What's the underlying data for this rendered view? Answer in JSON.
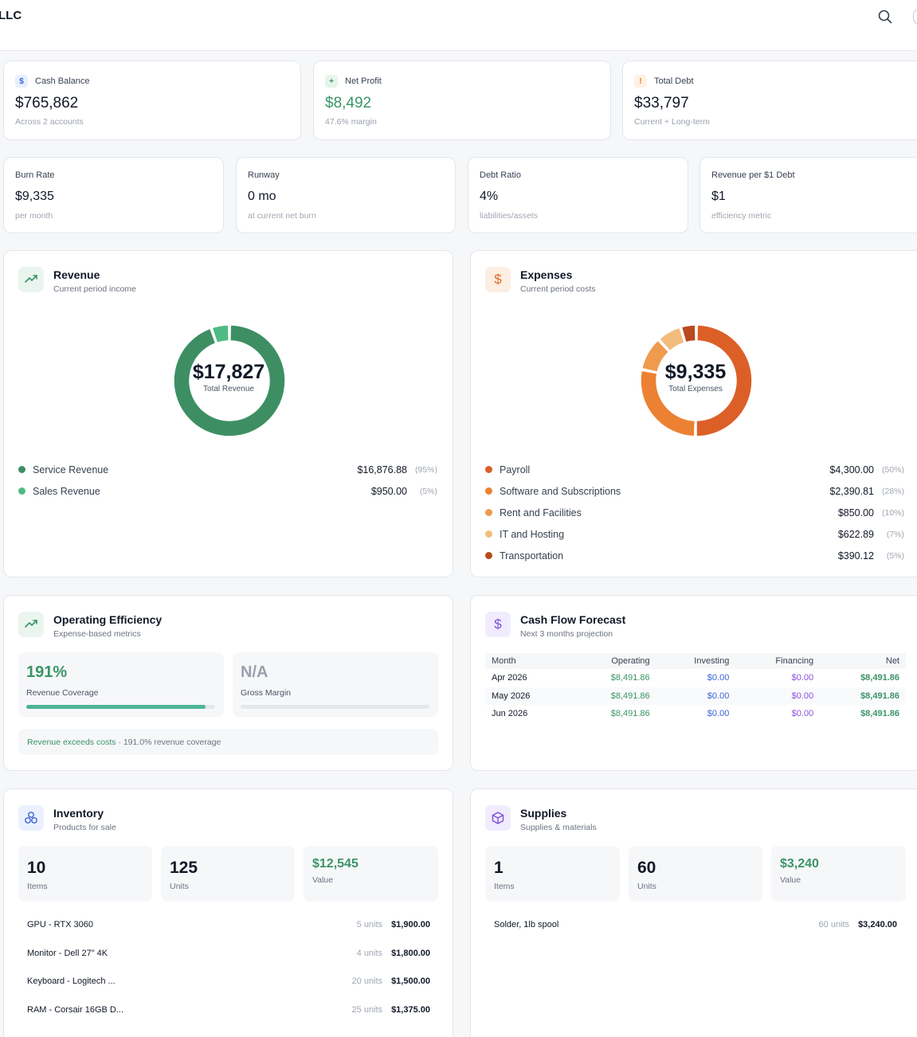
{
  "header": {
    "brand": "LLC"
  },
  "stats": [
    {
      "label": "Cash Balance",
      "badge": "$",
      "value": "$765,862",
      "sub": "Across 2 accounts"
    },
    {
      "label": "Net Profit",
      "badge": "+",
      "value": "$8,492",
      "sub": "47.6% margin"
    },
    {
      "label": "Total Debt",
      "badge": "!",
      "value": "$33,797",
      "sub": "Current + Long-term"
    }
  ],
  "metrics": [
    {
      "label": "Burn Rate",
      "value": "$9,335",
      "sub": "per month"
    },
    {
      "label": "Runway",
      "value": "0 mo",
      "sub": "at current net burn"
    },
    {
      "label": "Debt Ratio",
      "value": "4%",
      "sub": "liabilities/assets"
    },
    {
      "label": "Revenue per $1 Debt",
      "value": "$1",
      "sub": "efficiency metric"
    }
  ],
  "revenue": {
    "title": "Revenue",
    "subtitle": "Current period income",
    "total": "$17,827",
    "total_label": "Total Revenue",
    "items": [
      {
        "name": "Service Revenue",
        "amount": "$16,876.88",
        "pct": "(95%)",
        "value": 16876.88,
        "color": "#3d8f63"
      },
      {
        "name": "Sales Revenue",
        "amount": "$950.00",
        "pct": "(5%)",
        "value": 950.0,
        "color": "#4dbb83"
      }
    ]
  },
  "expenses": {
    "title": "Expenses",
    "subtitle": "Current period costs",
    "total": "$9,335",
    "total_label": "Total Expenses",
    "items": [
      {
        "name": "Payroll",
        "amount": "$4,300.00",
        "pct": "(50%)",
        "value": 4300.0,
        "color": "#dc5f28"
      },
      {
        "name": "Software and Subscriptions",
        "amount": "$2,390.81",
        "pct": "(28%)",
        "value": 2390.81,
        "color": "#ec8133"
      },
      {
        "name": "Rent and Facilities",
        "amount": "$850.00",
        "pct": "(10%)",
        "value": 850.0,
        "color": "#ee9b4d"
      },
      {
        "name": "IT and Hosting",
        "amount": "$622.89",
        "pct": "(7%)",
        "value": 622.89,
        "color": "#f2bd7c"
      },
      {
        "name": "Transportation",
        "amount": "$390.12",
        "pct": "(5%)",
        "value": 390.12,
        "color": "#b84a1d"
      }
    ]
  },
  "efficiency": {
    "title": "Operating Efficiency",
    "subtitle": "Expense-based metrics",
    "coverage_value": "191%",
    "coverage_label": "Revenue Coverage",
    "coverage_fill": 0.95,
    "margin_value": "N/A",
    "margin_label": "Gross Margin",
    "note_highlight": "Revenue exceeds costs",
    "note_rest": " · 191.0% revenue coverage"
  },
  "cashflow": {
    "title": "Cash Flow Forecast",
    "subtitle": "Next 3 months projection",
    "columns": [
      "Month",
      "Operating",
      "Investing",
      "Financing",
      "Net"
    ],
    "rows": [
      {
        "month": "Apr 2026",
        "operating": "$8,491.86",
        "investing": "$0.00",
        "financing": "$0.00",
        "net": "$8,491.86"
      },
      {
        "month": "May 2026",
        "operating": "$8,491.86",
        "investing": "$0.00",
        "financing": "$0.00",
        "net": "$8,491.86"
      },
      {
        "month": "Jun 2026",
        "operating": "$8,491.86",
        "investing": "$0.00",
        "financing": "$0.00",
        "net": "$8,491.86"
      }
    ]
  },
  "inventory": {
    "title": "Inventory",
    "subtitle": "Products for sale",
    "items_count": "10",
    "items_label": "Items",
    "units_count": "125",
    "units_label": "Units",
    "value": "$12,545",
    "value_label": "Value",
    "list": [
      {
        "name": "GPU - RTX 3060",
        "units": "5 units",
        "price": "$1,900.00"
      },
      {
        "name": "Monitor - Dell 27\" 4K",
        "units": "4 units",
        "price": "$1,800.00"
      },
      {
        "name": "Keyboard - Logitech ...",
        "units": "20 units",
        "price": "$1,500.00"
      },
      {
        "name": "RAM - Corsair 16GB D...",
        "units": "25 units",
        "price": "$1,375.00"
      }
    ]
  },
  "supplies": {
    "title": "Supplies",
    "subtitle": "Supplies & materials",
    "items_count": "1",
    "items_label": "Items",
    "units_count": "60",
    "units_label": "Units",
    "value": "$3,240",
    "value_label": "Value",
    "list": [
      {
        "name": "Solder, 1lb spool",
        "units": "60 units",
        "price": "$3,240.00"
      }
    ]
  }
}
